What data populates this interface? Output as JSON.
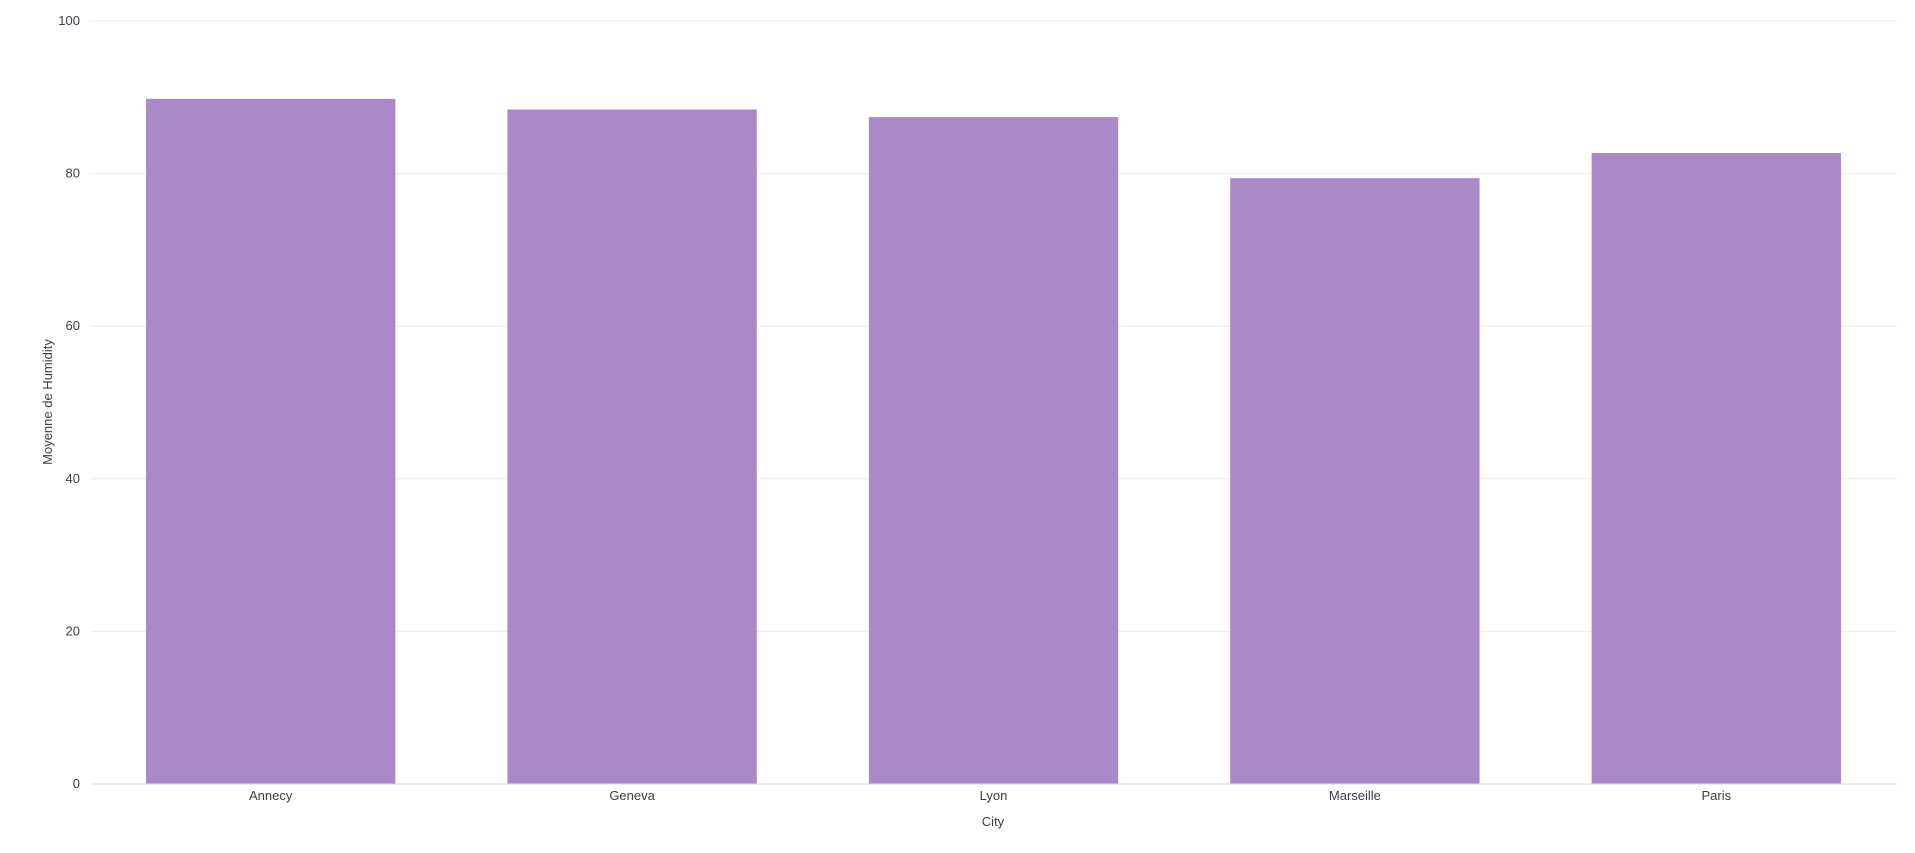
{
  "chart_data": {
    "type": "bar",
    "categories": [
      "Annecy",
      "Geneva",
      "Lyon",
      "Marseille",
      "Paris"
    ],
    "values": [
      89.8,
      88.4,
      87.4,
      79.4,
      82.7
    ],
    "xlabel": "City",
    "ylabel": "Moyenne de Humidity",
    "ylim": [
      0,
      100
    ],
    "yticks": [
      "0",
      "20",
      "40",
      "60",
      "80",
      "100"
    ],
    "grid": true,
    "bar_color": "#a98ac6",
    "grid_color": "#ececec",
    "axis_color": "#d9d9e3"
  }
}
